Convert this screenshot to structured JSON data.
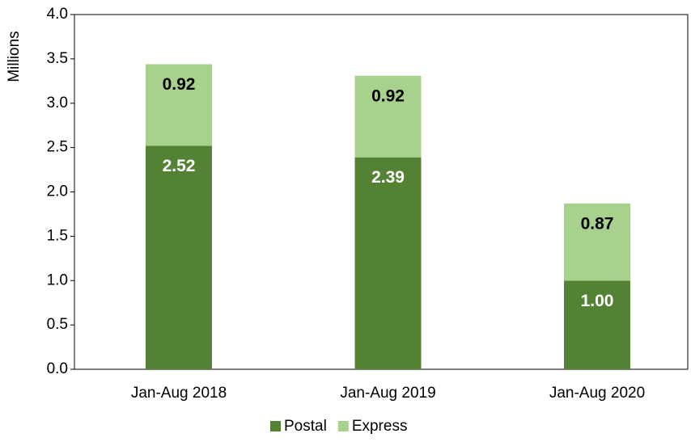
{
  "chart_data": {
    "type": "stacked_bar",
    "y_label": "Millions",
    "categories": [
      "Jan-Aug 2018",
      "Jan-Aug 2019",
      "Jan-Aug 2020"
    ],
    "series": [
      {
        "name": "Postal",
        "color": "#548235",
        "values": [
          2.52,
          2.39,
          1.0
        ],
        "value_labels": [
          "2.52",
          "2.39",
          "1.00"
        ]
      },
      {
        "name": "Express",
        "color": "#a9d18e",
        "values": [
          0.92,
          0.92,
          0.87
        ],
        "value_labels": [
          "0.92",
          "0.92",
          "0.87"
        ]
      }
    ],
    "ylim": [
      0,
      4
    ],
    "yticks": [
      {
        "value": 0,
        "label": "0.0"
      },
      0.5,
      {
        "value": 1,
        "label": "1.0"
      },
      1.5,
      {
        "value": 2,
        "label": "2.0"
      },
      2.5,
      {
        "value": 3,
        "label": "3.0"
      },
      3.5,
      {
        "value": 4,
        "label": "4.0"
      }
    ],
    "legend": "bottom"
  }
}
